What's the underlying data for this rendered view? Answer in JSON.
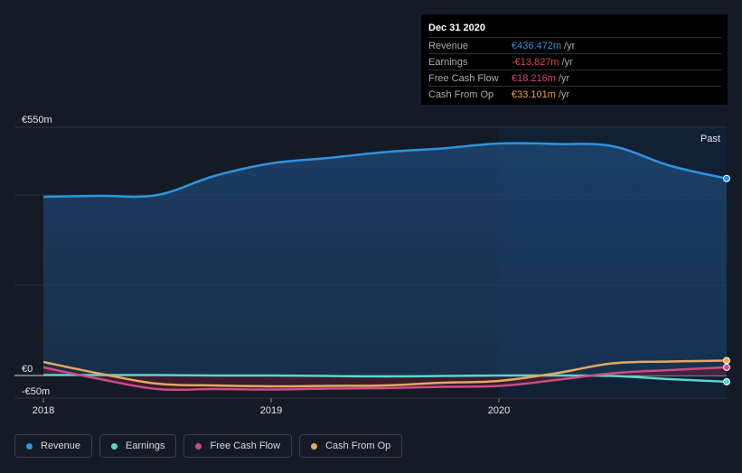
{
  "tooltip": {
    "date": "Dec 31 2020",
    "unit": "/yr",
    "rows": [
      {
        "label": "Revenue",
        "value": "€436.472m",
        "color": "#2f93e0"
      },
      {
        "label": "Earnings",
        "value": "-€13.827m",
        "color": "#e8454f"
      },
      {
        "label": "Free Cash Flow",
        "value": "€18.216m",
        "color": "#d0457f"
      },
      {
        "label": "Cash From Op",
        "value": "€33.101m",
        "color": "#e6a24b"
      }
    ]
  },
  "past_label": "Past",
  "legend": [
    {
      "label": "Revenue",
      "color": "#2f93e0"
    },
    {
      "label": "Earnings",
      "color": "#58d6cc"
    },
    {
      "label": "Free Cash Flow",
      "color": "#cc4b86"
    },
    {
      "label": "Cash From Op",
      "color": "#e6a860"
    }
  ],
  "chart_data": {
    "type": "area",
    "currency": "€",
    "y_tick_labels": [
      "€550m",
      "€0",
      "-€50m"
    ],
    "ylim": [
      -50,
      550
    ],
    "x_tick_labels": [
      "2018",
      "2019",
      "2020"
    ],
    "xlim": [
      2018.0,
      2021.0
    ],
    "highlight_from": 2020.0,
    "grid": true,
    "series": [
      {
        "name": "Revenue",
        "color": "#2f93e0",
        "x": [
          2018.0,
          2018.25,
          2018.5,
          2018.75,
          2019.0,
          2019.25,
          2019.5,
          2019.75,
          2020.0,
          2020.25,
          2020.5,
          2020.75,
          2021.0
        ],
        "values": [
          396,
          398,
          400,
          442,
          470,
          482,
          495,
          503,
          514,
          513,
          508,
          465,
          436.472
        ]
      },
      {
        "name": "Earnings",
        "color": "#58d6cc",
        "x": [
          2018.0,
          2018.25,
          2018.5,
          2018.75,
          2019.0,
          2019.25,
          2019.5,
          2019.75,
          2020.0,
          2020.25,
          2020.5,
          2020.75,
          2021.0
        ],
        "values": [
          1,
          1,
          1,
          0,
          0,
          -1,
          -2,
          -1,
          0,
          0,
          -1,
          -8,
          -13.827
        ]
      },
      {
        "name": "Free Cash Flow",
        "color": "#cc4b86",
        "x": [
          2018.0,
          2018.25,
          2018.5,
          2018.75,
          2019.0,
          2019.25,
          2019.5,
          2019.75,
          2020.0,
          2020.25,
          2020.5,
          2020.75,
          2021.0
        ],
        "values": [
          18,
          -8,
          -30,
          -30,
          -31,
          -29,
          -28,
          -25,
          -23,
          -10,
          5,
          12,
          18.216
        ]
      },
      {
        "name": "Cash From Op",
        "color": "#e6a860",
        "x": [
          2018.0,
          2018.25,
          2018.5,
          2018.75,
          2019.0,
          2019.25,
          2019.5,
          2019.75,
          2020.0,
          2020.25,
          2020.5,
          2020.75,
          2021.0
        ],
        "values": [
          30,
          4,
          -18,
          -22,
          -24,
          -23,
          -22,
          -16,
          -12,
          5,
          27,
          31,
          33.101
        ]
      }
    ]
  }
}
